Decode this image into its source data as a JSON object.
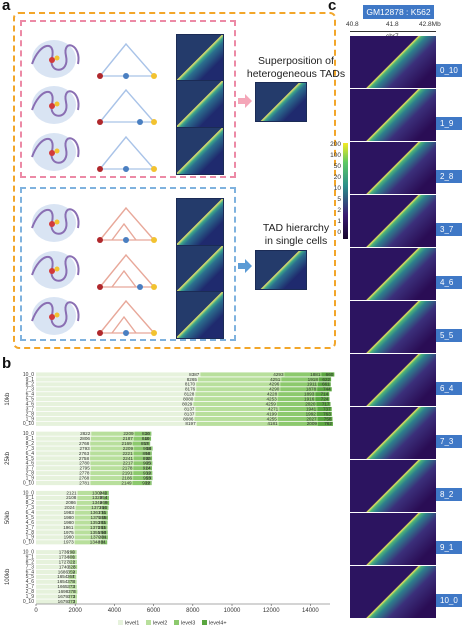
{
  "panel_labels": {
    "a": "a",
    "b": "b",
    "c": "c"
  },
  "panel_a": {
    "caption_top": [
      "Superposition of",
      "heterogeneous TADs"
    ],
    "caption_bottom": [
      "TAD hierarchy",
      "in single cells"
    ],
    "colors": {
      "outer_box": "#f2a62a",
      "pink_box": "#ec8aa6",
      "blue_box": "#7fb2de",
      "arrow_pink": "#f4a6b8",
      "arrow_blue": "#5b9bd5"
    }
  },
  "panel_c": {
    "title": "GM12878 : K562",
    "axis": {
      "ticks": [
        "40.8",
        "41.8",
        "42.8Mb"
      ],
      "label": "chr7"
    },
    "colorbar": {
      "ticks": [
        "200",
        "100",
        "50",
        "20",
        "10",
        "5",
        "2",
        "1",
        "0"
      ],
      "colors": [
        "#f4ea24",
        "#2a8d8a",
        "#3b1b73",
        "#16052b"
      ]
    },
    "rows": [
      "0_10",
      "1_9",
      "2_8",
      "3_7",
      "4_6",
      "5_5",
      "6_4",
      "7_3",
      "8_2",
      "9_1",
      "10_0"
    ]
  },
  "chart_data": {
    "type": "bar",
    "orientation": "horizontal",
    "stacked": true,
    "xlim": [
      0,
      15000
    ],
    "xticks": [
      "0",
      "2000",
      "4000",
      "6000",
      "8000",
      "10000",
      "12000",
      "14000"
    ],
    "legend": {
      "placement": "bottom",
      "entries": [
        "level1",
        "level2",
        "level3",
        "level4+"
      ]
    },
    "series_colors": [
      "#e6f2dc",
      "#b8df9c",
      "#8cc96d",
      "#5aa63f"
    ],
    "groups": [
      {
        "name": "10kb",
        "categories": [
          "10_0",
          "9_1",
          "8_2",
          "7_3",
          "6_4",
          "5_5",
          "4_6",
          "3_7",
          "2_8",
          "1_9",
          "0_10"
        ],
        "level1": [
          8387,
          8265,
          8170,
          8176,
          8128,
          8080,
          8029,
          8137,
          8137,
          8086,
          8197
        ],
        "level2": [
          4293,
          4251,
          4296,
          4290,
          4228,
          4253,
          4259,
          4271,
          4199,
          4255,
          4181
        ],
        "level3": [
          1881,
          1918,
          1911,
          1878,
          1893,
          1916,
          2020,
          1941,
          1992,
          2027,
          2009
        ],
        "level4": [
          660,
          622,
          661,
          744,
          714,
          724,
          717,
          737,
          763,
          758,
          762
        ]
      },
      {
        "name": "25kb",
        "categories": [
          "10_0",
          "9_1",
          "8_2",
          "7_3",
          "6_4",
          "5_5",
          "4_6",
          "3_7",
          "2_8",
          "1_9",
          "0_10"
        ],
        "level1": [
          2822,
          2806,
          2768,
          2793,
          2763,
          2758,
          2780,
          2795,
          2778,
          2768,
          2781
        ],
        "level2": [
          2209,
          2187,
          2169,
          2209,
          2221,
          2241,
          2217,
          2178,
          2191,
          2186,
          2149
        ],
        "level3": [
          820,
          846,
          857,
          908,
          890,
          892,
          905,
          914,
          932,
          953,
          932
        ],
        "level4": [
          16,
          10,
          18,
          18,
          18,
          20,
          23,
          24,
          19,
          20,
          20
        ]
      },
      {
        "name": "50kb",
        "categories": [
          "10_0",
          "9_1",
          "8_2",
          "7_3",
          "6_4",
          "5_5",
          "4_6",
          "3_7",
          "2_8",
          "1_9",
          "0_10"
        ],
        "level1": [
          2121,
          2108,
          2086,
          2024,
          1983,
          1980,
          1980,
          1961,
          1975,
          1980,
          1973
        ],
        "level2": [
          1309,
          1325,
          1346,
          1371,
          1361,
          1375,
          1353,
          1370,
          1355,
          1370,
          1344
        ],
        "level3": [
          242,
          254,
          269,
          266,
          276,
          285,
          285,
          281,
          290,
          284,
          284
        ],
        "level4": [
          6,
          4,
          6,
          14,
          11,
          16,
          11,
          15,
          18,
          21,
          21
        ]
      },
      {
        "name": "100kb",
        "categories": [
          "10_0",
          "9_1",
          "8_2",
          "7_3",
          "6_4",
          "5_5",
          "4_6",
          "3_7",
          "2_8",
          "1_9",
          "0_10"
        ],
        "level1": [
          1736,
          1734,
          1727,
          1740,
          1686,
          1654,
          1654,
          1665,
          1698,
          1679,
          1679
        ],
        "level2": [
          296,
          300,
          321,
          328,
          359,
          367,
          378,
          373,
          376,
          373,
          373
        ],
        "level3": [
          2,
          1,
          2,
          3,
          2,
          4,
          3,
          3,
          3,
          3,
          3
        ],
        "level4": [
          0,
          0,
          0,
          0,
          0,
          0,
          0,
          0,
          0,
          0,
          0
        ]
      }
    ]
  }
}
